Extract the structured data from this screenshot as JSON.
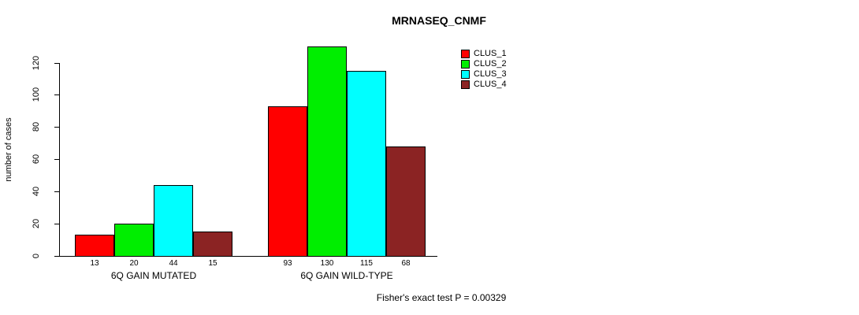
{
  "chart_data": {
    "type": "bar",
    "title": "MRNASEQ_CNMF",
    "ylabel": "number of cases",
    "ylim": [
      0,
      132
    ],
    "yticks": [
      0,
      20,
      40,
      60,
      80,
      100,
      120
    ],
    "grid": false,
    "legend_position": "top-right",
    "categories": [
      "6Q GAIN MUTATED",
      "6Q GAIN WILD-TYPE"
    ],
    "series": [
      {
        "name": "CLUS_1",
        "color": "#FF0000",
        "values": [
          13,
          93
        ]
      },
      {
        "name": "CLUS_2",
        "color": "#00EE00",
        "values": [
          20,
          130
        ]
      },
      {
        "name": "CLUS_3",
        "color": "#00FFFF",
        "values": [
          44,
          115
        ]
      },
      {
        "name": "CLUS_4",
        "color": "#8B2323",
        "values": [
          15,
          68
        ]
      }
    ],
    "bar_value_labels": [
      [
        "13",
        "20",
        "44",
        "15"
      ],
      [
        "93",
        "130",
        "115",
        "68"
      ]
    ],
    "annotation": "Fisher's exact test P = 0.00329"
  }
}
